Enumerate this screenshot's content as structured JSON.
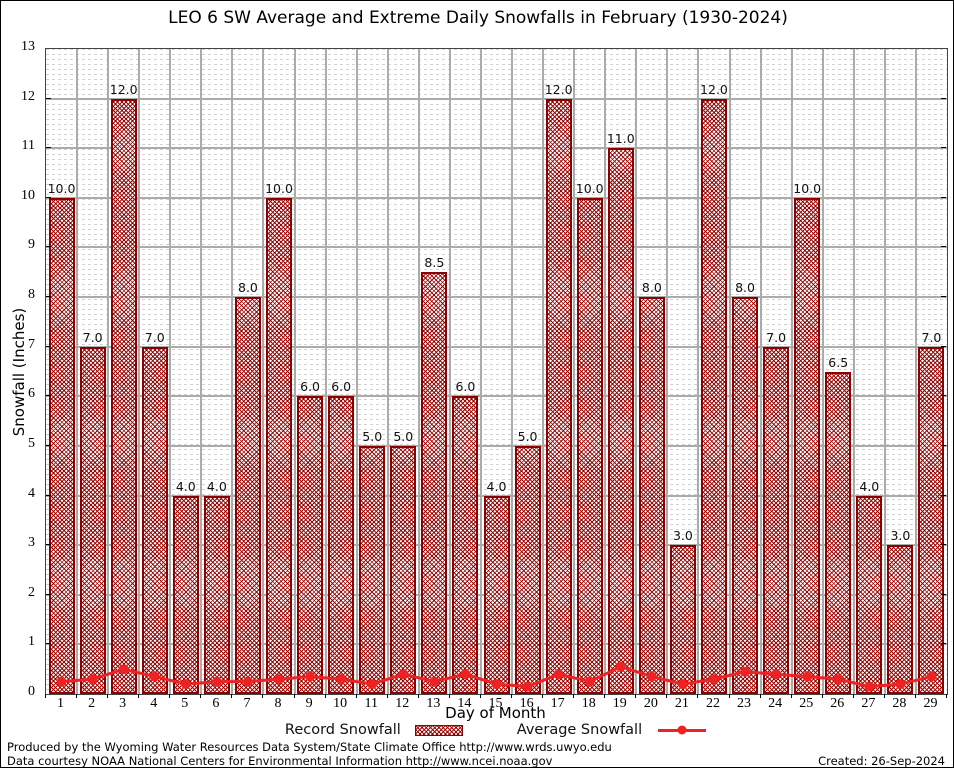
{
  "title": "LEO 6 SW Average and Extreme Daily Snowfalls in February (1930-2024)",
  "chart_data": {
    "type": "bar",
    "title": "LEO 6 SW Average and Extreme Daily Snowfalls in February (1930-2024)",
    "xlabel": "Day of Month",
    "ylabel": "Snowfall (Inches)",
    "ylim": [
      0,
      13
    ],
    "yticks": [
      0,
      1,
      2,
      3,
      4,
      5,
      6,
      7,
      8,
      9,
      10,
      11,
      12,
      13
    ],
    "grid": true,
    "legend_position": "bottom",
    "categories": [
      1,
      2,
      3,
      4,
      5,
      6,
      7,
      8,
      9,
      10,
      11,
      12,
      13,
      14,
      15,
      16,
      17,
      18,
      19,
      20,
      21,
      22,
      23,
      24,
      25,
      26,
      27,
      28,
      29
    ],
    "series": [
      {
        "name": "Record Snowfall",
        "type": "bar",
        "values": [
          10.0,
          7.0,
          12.0,
          7.0,
          4.0,
          4.0,
          8.0,
          10.0,
          6.0,
          6.0,
          5.0,
          5.0,
          8.5,
          6.0,
          4.0,
          5.0,
          12.0,
          10.0,
          11.0,
          8.0,
          3.0,
          12.0,
          8.0,
          7.0,
          10.0,
          6.5,
          4.0,
          3.0,
          7.0
        ],
        "labels": [
          "10.0",
          "7.0",
          "12.0",
          "7.0",
          "4.0",
          "4.0",
          "8.0",
          "10.0",
          "6.0",
          "6.0",
          "5.0",
          "5.0",
          "8.5",
          "6.0",
          "4.0",
          "5.0",
          "12.0",
          "10.0",
          "11.0",
          "8.0",
          "3.0",
          "12.0",
          "8.0",
          "7.0",
          "10.0",
          "6.5",
          "4.0",
          "3.0",
          "7.0"
        ]
      },
      {
        "name": "Average Snowfall",
        "type": "line",
        "values": [
          0.25,
          0.3,
          0.5,
          0.35,
          0.2,
          0.25,
          0.25,
          0.3,
          0.35,
          0.3,
          0.2,
          0.4,
          0.25,
          0.4,
          0.2,
          0.15,
          0.4,
          0.25,
          0.55,
          0.35,
          0.2,
          0.3,
          0.45,
          0.4,
          0.35,
          0.3,
          0.15,
          0.2,
          0.35
        ]
      }
    ],
    "colors": {
      "record_fill": "#940000",
      "record_border": "#8b0000",
      "average_line": "#ee2222",
      "grid_major": "#ababab",
      "grid_minor": "#d2d2d2"
    }
  },
  "footer": {
    "line1": "Produced by the Wyoming Water Resources Data System/State Climate Office http://www.wrds.uwyo.edu",
    "line2": "Data courtesy NOAA National Centers for Environmental Information http://www.ncei.noaa.gov",
    "created": "Created: 26-Sep-2024"
  }
}
